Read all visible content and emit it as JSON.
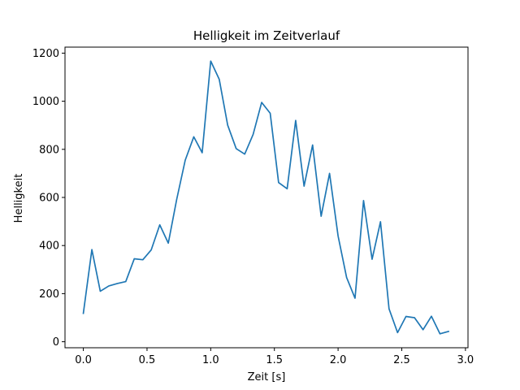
{
  "chart_data": {
    "type": "line",
    "title": "Helligkeit im Zeitverlauf",
    "xlabel": "Zeit [s]",
    "ylabel": "Helligkeit",
    "xlim": [
      -0.144,
      3.02
    ],
    "ylim": [
      -25,
      1225
    ],
    "xticks": [
      0.0,
      0.5,
      1.0,
      1.5,
      2.0,
      2.5,
      3.0
    ],
    "xtick_labels": [
      "0.0",
      "0.5",
      "1.0",
      "1.5",
      "2.0",
      "2.5",
      "3.0"
    ],
    "yticks": [
      0,
      200,
      400,
      600,
      800,
      1000,
      1200
    ],
    "ytick_labels": [
      "0",
      "200",
      "400",
      "600",
      "800",
      "1000",
      "1200"
    ],
    "grid": false,
    "series": [
      {
        "color": "#1f77b4",
        "x": [
          0.0,
          0.067,
          0.133,
          0.2,
          0.267,
          0.333,
          0.4,
          0.467,
          0.533,
          0.6,
          0.667,
          0.733,
          0.8,
          0.867,
          0.933,
          1.0,
          1.067,
          1.133,
          1.2,
          1.267,
          1.333,
          1.4,
          1.467,
          1.533,
          1.6,
          1.667,
          1.733,
          1.8,
          1.867,
          1.933,
          2.0,
          2.067,
          2.133,
          2.2,
          2.267,
          2.333,
          2.4,
          2.467,
          2.533,
          2.6,
          2.667,
          2.733,
          2.8,
          2.867
        ],
        "y": [
          118,
          383,
          210,
          232,
          242,
          250,
          345,
          341,
          382,
          486,
          410,
          592,
          755,
          852,
          786,
          1167,
          1091,
          901,
          803,
          780,
          862,
          995,
          950,
          662,
          636,
          920,
          647,
          818,
          522,
          700,
          440,
          267,
          181,
          587,
          343,
          499,
          137,
          38,
          105,
          100,
          50,
          106,
          33,
          43
        ]
      }
    ]
  }
}
